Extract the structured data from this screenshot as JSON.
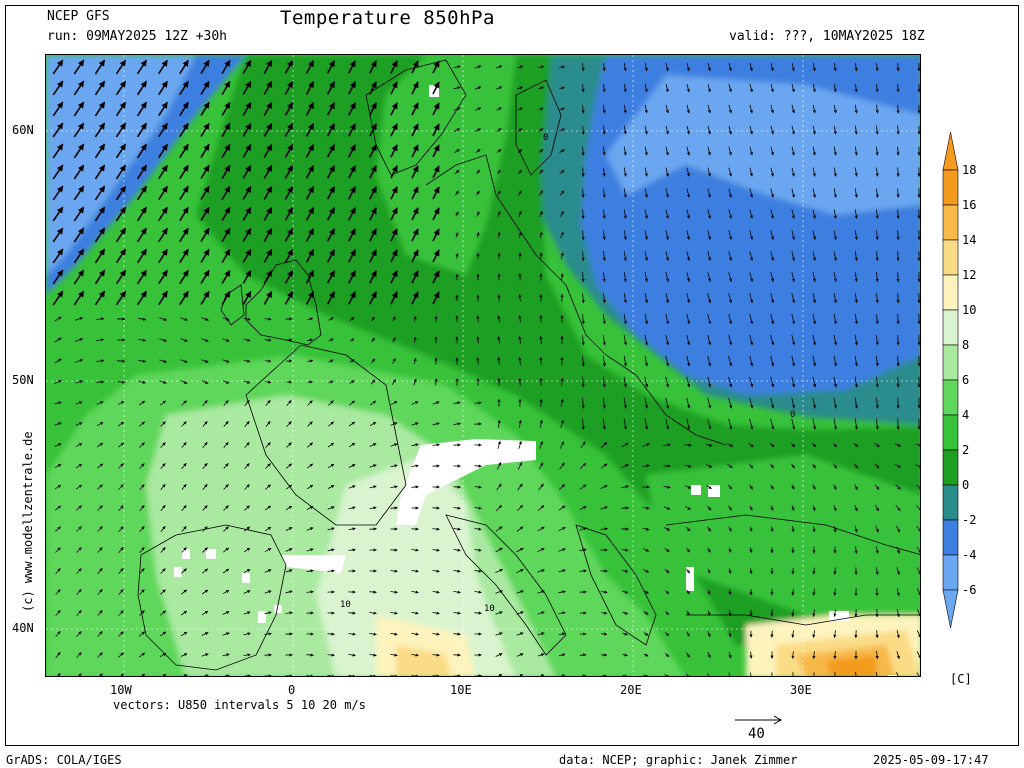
{
  "header": {
    "model": "NCEP GFS",
    "run": "run: 09MAY2025 12Z +30h",
    "title": "Temperature 850hPa",
    "valid": "valid: ???, 10MAY2025 18Z"
  },
  "axes": {
    "lat_labels": [
      "60N",
      "50N",
      "40N"
    ],
    "lon_labels": [
      "10W",
      "0",
      "10E",
      "20E",
      "30E"
    ]
  },
  "colorbar": {
    "unit": "[C]",
    "levels": [
      "18",
      "16",
      "14",
      "12",
      "10",
      "8",
      "6",
      "4",
      "2",
      "0",
      "-2",
      "-4",
      "-6"
    ],
    "colors": [
      "#f39b1f",
      "#f6b94a",
      "#fbdc86",
      "#fdf3bd",
      "#d9f4cf",
      "#a9e9a0",
      "#5fd75a",
      "#37c23a",
      "#1f9f22",
      "#2b8c8c",
      "#3d7fe0",
      "#6aa7f0"
    ]
  },
  "contour_labels": [
    "0",
    "0",
    "10",
    "10"
  ],
  "vectors": {
    "caption": "vectors: U850 intervals 5 10 20 m/s",
    "reference": "40"
  },
  "watermark": "(c) www.modellzentrale.de",
  "footer": {
    "left": "GrADS: COLA/IGES",
    "credit": "data: NCEP; graphic: Janek Zimmer",
    "timestamp": "2025-05-09-17:47"
  }
}
